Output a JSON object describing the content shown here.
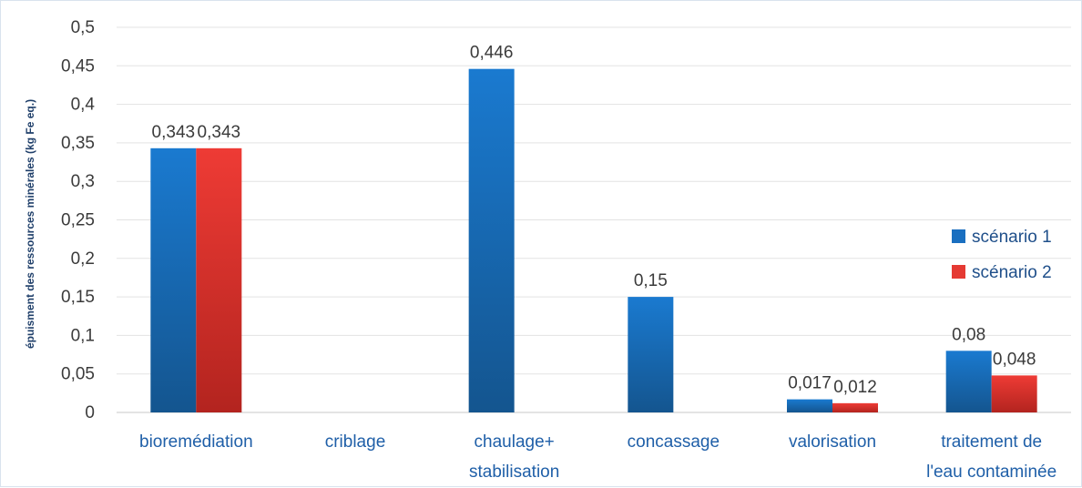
{
  "chart_data": {
    "type": "bar",
    "ylabel": "épuisment des ressources minérales (kg Fe eq.)",
    "xlabel": "",
    "ylim": [
      0,
      0.5
    ],
    "yticks": [
      "0",
      "0,05",
      "0,1",
      "0,15",
      "0,2",
      "0,25",
      "0,3",
      "0,35",
      "0,4",
      "0,45",
      "0,5"
    ],
    "ytick_values": [
      0,
      0.05,
      0.1,
      0.15,
      0.2,
      0.25,
      0.3,
      0.35,
      0.4,
      0.45,
      0.5
    ],
    "categories": [
      [
        "bioremédiation"
      ],
      [
        "criblage"
      ],
      [
        "chaulage+",
        "stabilisation"
      ],
      [
        "concassage"
      ],
      [
        "valorisation"
      ],
      [
        "traitement de",
        "l'eau contaminée"
      ]
    ],
    "series": [
      {
        "name": "scénario 1",
        "color": "#1a6fc0",
        "values": [
          0.343,
          null,
          0.446,
          0.15,
          0.017,
          0.08
        ],
        "labels": [
          "0,343",
          "",
          "0,446",
          "0,15",
          "0,017",
          "0,08"
        ]
      },
      {
        "name": "scénario 2",
        "color": "#e53a33",
        "values": [
          0.343,
          null,
          null,
          null,
          0.012,
          0.048
        ],
        "labels": [
          "0,343",
          "",
          "",
          "",
          "0,012",
          "0,048"
        ]
      }
    ],
    "grid": true,
    "legend_position": "right"
  }
}
